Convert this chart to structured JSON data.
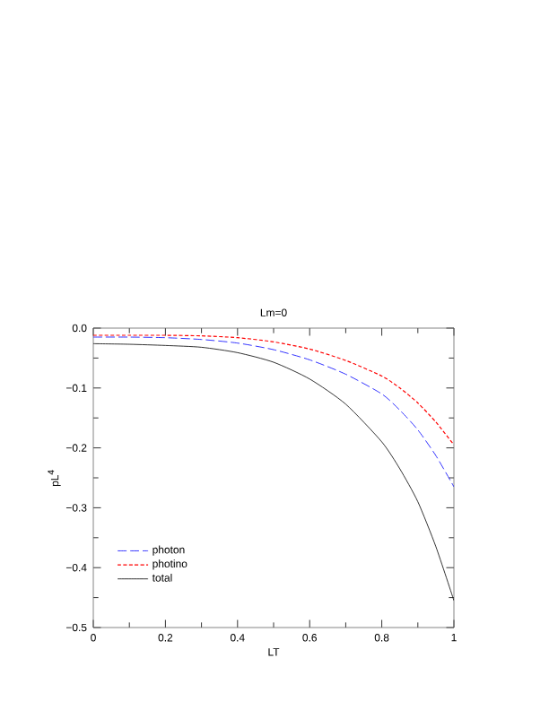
{
  "chart_data": {
    "type": "line",
    "title": "Lm=0",
    "xlabel": "LT",
    "ylabel": "pL$^{4}$",
    "x": [
      0,
      0.1,
      0.2,
      0.3,
      0.4,
      0.5,
      0.6,
      0.7,
      0.8,
      0.85,
      0.9,
      0.95,
      1
    ],
    "series": [
      {
        "name": "photon",
        "color": "#0000ff",
        "line_style": "dashed",
        "values": [
          -0.015,
          -0.015,
          -0.016,
          -0.019,
          -0.025,
          -0.036,
          -0.053,
          -0.077,
          -0.11,
          -0.137,
          -0.17,
          -0.213,
          -0.265
        ]
      },
      {
        "name": "photino",
        "color": "#ff0000",
        "line_style": "dotted",
        "values": [
          -0.012,
          -0.012,
          -0.012,
          -0.013,
          -0.016,
          -0.023,
          -0.035,
          -0.054,
          -0.08,
          -0.1,
          -0.125,
          -0.157,
          -0.195
        ]
      },
      {
        "name": "total",
        "color": "#000000",
        "line_style": "solid",
        "values": [
          -0.026,
          -0.027,
          -0.029,
          -0.032,
          -0.041,
          -0.057,
          -0.085,
          -0.127,
          -0.19,
          -0.235,
          -0.29,
          -0.365,
          -0.455
        ]
      }
    ],
    "xlim": [
      0,
      1
    ],
    "ylim": [
      -0.5,
      0
    ],
    "xticks": [
      0,
      0.2,
      0.4,
      0.6,
      0.8,
      1
    ],
    "yticks": [
      {
        "value": -0.5,
        "label": "−0.5"
      },
      {
        "value": -0.4,
        "label": "−0.4"
      },
      {
        "value": -0.3,
        "label": "−0.3"
      },
      {
        "value": -0.2,
        "label": "−0.2"
      },
      {
        "value": -0.1,
        "label": "−0.1"
      },
      {
        "value": 0,
        "label": "0.0"
      }
    ],
    "legend": "bottom left",
    "grid": false
  }
}
